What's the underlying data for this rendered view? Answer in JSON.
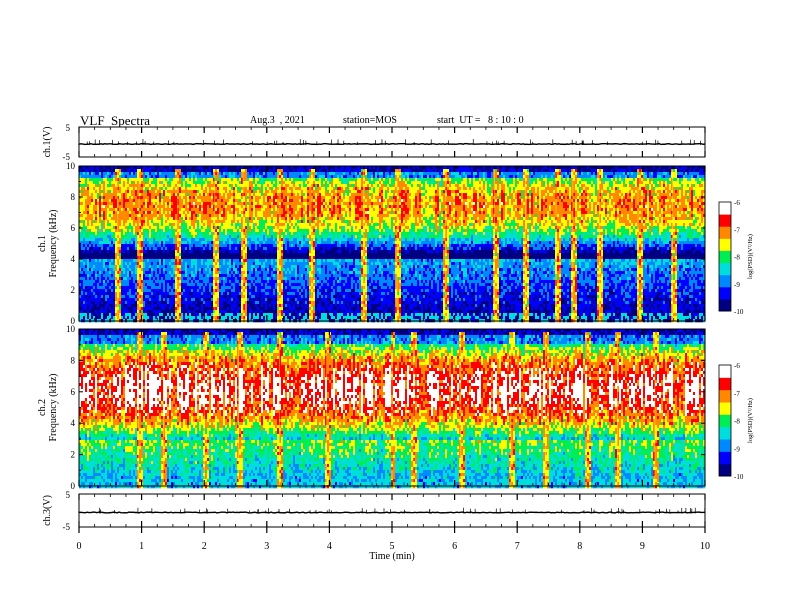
{
  "header": {
    "title": "VLF  Spectra",
    "date": "Aug.3  , 2021",
    "station": "station=MOS",
    "start_ut": "start  UT =   8 : 10 : 0"
  },
  "colors": {
    "scale": [
      "#000080",
      "#0000ff",
      "#0088ff",
      "#00dddd",
      "#00ee55",
      "#ffff00",
      "#ff8800",
      "#ff0000",
      "#ffffff"
    ],
    "background": "#000080",
    "axis": "#000000"
  },
  "chart_data": [
    {
      "type": "line",
      "name": "ch1-waveform",
      "ylabel": "ch.1(V)",
      "ylim": [
        -5,
        5
      ],
      "yticks": [
        "5",
        "-5"
      ],
      "baseline": 0
    },
    {
      "type": "heatmap",
      "name": "ch1-spectrogram",
      "xlabel": "Time  (min)",
      "ylabel_line1": "ch.1",
      "ylabel_line2": "Frequency  (kHz)",
      "xlim": [
        0,
        10
      ],
      "ylim": [
        0,
        10
      ],
      "yticks": [
        "0",
        "2",
        "4",
        "6",
        "8",
        "10"
      ],
      "colorbar": {
        "label": "log(PSD)(V²/Hz)",
        "range": [
          -10,
          -6
        ],
        "ticks": [
          "-6",
          "-7",
          "-8",
          "-9",
          "-10"
        ]
      },
      "profile": {
        "high_band_khz": [
          4.0,
          9.2
        ],
        "high_peak_khz": 7.5,
        "high_peak_level": -7.0,
        "low_level": -10.0
      },
      "bursts_min": [
        0.62,
        0.96,
        1.58,
        2.17,
        2.62,
        3.18,
        3.72,
        4.55,
        5.08,
        5.86,
        6.64,
        7.13,
        7.62,
        7.89,
        8.31,
        8.93,
        9.48
      ]
    },
    {
      "type": "heatmap",
      "name": "ch2-spectrogram",
      "xlabel": "Time  (min)",
      "ylabel_line1": "ch.2",
      "ylabel_line2": "Frequency  (kHz)",
      "xlim": [
        0,
        10
      ],
      "ylim": [
        0,
        10
      ],
      "yticks": [
        "0",
        "2",
        "4",
        "6",
        "8",
        "10"
      ],
      "colorbar": {
        "label": "log(PSD)(V²/Hz)",
        "range": [
          -10,
          -6
        ],
        "ticks": [
          "-6",
          "-7",
          "-8",
          "-9",
          "-10"
        ]
      },
      "profile": {
        "high_band_khz": [
          3.0,
          9.0
        ],
        "high_peak_khz": 6.2,
        "high_peak_level": -6.2,
        "low_level": -9.0
      },
      "bursts_min": [
        0.95,
        1.35,
        2.0,
        2.55,
        3.2,
        3.95,
        5.0,
        5.35,
        6.1,
        6.9,
        7.45,
        8.1,
        8.6,
        9.2
      ]
    },
    {
      "type": "line",
      "name": "ch3-waveform",
      "ylabel": "ch.3(V)",
      "ylim": [
        -5,
        5
      ],
      "yticks": [
        "5",
        "-5"
      ],
      "baseline": 0
    },
    {
      "type": "axis",
      "name": "time-axis",
      "xlabel": "Time  (min)",
      "xlim": [
        0,
        10
      ],
      "xticks": [
        "0",
        "1",
        "2",
        "3",
        "4",
        "5",
        "6",
        "7",
        "8",
        "9",
        "10"
      ]
    }
  ]
}
